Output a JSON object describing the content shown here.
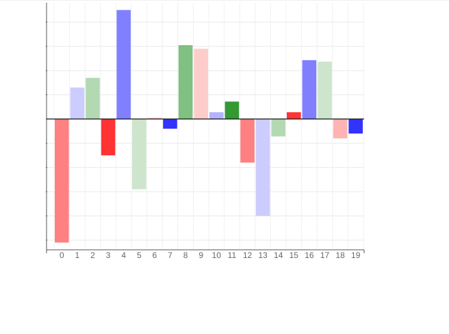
{
  "chart_data": {
    "type": "bar",
    "categories": [
      "0",
      "1",
      "2",
      "3",
      "4",
      "5",
      "6",
      "7",
      "8",
      "9",
      "10",
      "11",
      "12",
      "13",
      "14",
      "15",
      "16",
      "17",
      "18",
      "19"
    ],
    "values": [
      -5.1,
      1.3,
      1.7,
      -1.5,
      4.5,
      -2.9,
      0.05,
      -0.4,
      3.05,
      2.9,
      0.28,
      0.72,
      -1.8,
      -4.0,
      -0.72,
      0.28,
      2.43,
      2.37,
      -0.8,
      -0.6
    ],
    "colors": [
      "#ff8080",
      "#ccccff",
      "#b3d9b3",
      "#ff3333",
      "#8080ff",
      "#cce5cc",
      "#ffbfbf",
      "#3333ff",
      "#80c080",
      "#ffcccc",
      "#b3b3ff",
      "#339933",
      "#ff8080",
      "#ccccff",
      "#b3d9b3",
      "#ff3333",
      "#8080ff",
      "#cce5cc",
      "#ffb3b3",
      "#3333ff"
    ],
    "ylim": [
      -5.4,
      4.8
    ],
    "yticks": [
      -5,
      -4,
      -3,
      -2,
      -1,
      0,
      1,
      2,
      3,
      4
    ],
    "grid": true,
    "title": "",
    "xlabel": "",
    "ylabel": ""
  }
}
